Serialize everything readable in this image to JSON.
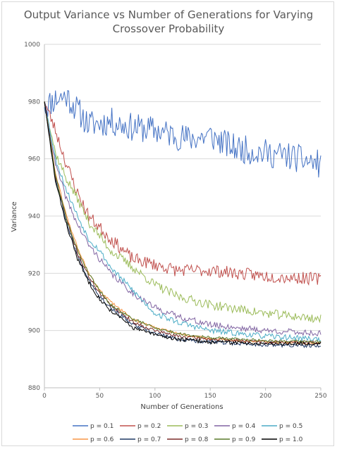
{
  "chart_data": {
    "type": "line",
    "title_lines": [
      "Output Variance vs Number of Generations for Varying",
      "Crossover Probability"
    ],
    "xlabel": "Number of Generations",
    "ylabel": "Variance",
    "xlim": [
      0,
      250
    ],
    "ylim": [
      880,
      1000
    ],
    "xticks": [
      0,
      50,
      100,
      150,
      200,
      250
    ],
    "yticks": [
      880,
      900,
      920,
      940,
      960,
      980,
      1000
    ],
    "grid": "horizontal",
    "legend_position": "bottom",
    "series": [
      {
        "name": "p = 0.1",
        "color": "#4472c4",
        "noise": 5.0,
        "seed": 11,
        "points": [
          [
            0,
            978
          ],
          [
            10,
            981
          ],
          [
            20,
            982
          ],
          [
            30,
            977
          ],
          [
            40,
            972
          ],
          [
            60,
            973
          ],
          [
            80,
            971
          ],
          [
            100,
            970
          ],
          [
            130,
            967
          ],
          [
            150,
            968
          ],
          [
            170,
            964
          ],
          [
            200,
            962
          ],
          [
            220,
            961
          ],
          [
            250,
            958
          ]
        ]
      },
      {
        "name": "p = 0.2",
        "color": "#c0504d",
        "noise": 2.2,
        "seed": 23,
        "points": [
          [
            0,
            980
          ],
          [
            10,
            970
          ],
          [
            20,
            958
          ],
          [
            30,
            948
          ],
          [
            40,
            940
          ],
          [
            50,
            936
          ],
          [
            60,
            932
          ],
          [
            80,
            925
          ],
          [
            100,
            923
          ],
          [
            120,
            921
          ],
          [
            150,
            921
          ],
          [
            200,
            919
          ],
          [
            250,
            918
          ]
        ]
      },
      {
        "name": "p = 0.3",
        "color": "#9bbb59",
        "noise": 1.6,
        "seed": 37,
        "points": [
          [
            0,
            980
          ],
          [
            10,
            962
          ],
          [
            20,
            953
          ],
          [
            30,
            946
          ],
          [
            40,
            938
          ],
          [
            50,
            933
          ],
          [
            60,
            928
          ],
          [
            80,
            922
          ],
          [
            100,
            916
          ],
          [
            120,
            912
          ],
          [
            150,
            909
          ],
          [
            200,
            906
          ],
          [
            250,
            904
          ]
        ]
      },
      {
        "name": "p = 0.4",
        "color": "#8064a2",
        "noise": 1.1,
        "seed": 41,
        "points": [
          [
            0,
            980
          ],
          [
            10,
            958
          ],
          [
            20,
            946
          ],
          [
            30,
            937
          ],
          [
            40,
            930
          ],
          [
            50,
            925
          ],
          [
            60,
            920
          ],
          [
            80,
            913
          ],
          [
            100,
            908
          ],
          [
            120,
            905
          ],
          [
            150,
            902
          ],
          [
            200,
            900
          ],
          [
            250,
            899
          ]
        ]
      },
      {
        "name": "p = 0.5",
        "color": "#4bacc6",
        "noise": 1.0,
        "seed": 53,
        "points": [
          [
            0,
            980
          ],
          [
            10,
            960
          ],
          [
            20,
            949
          ],
          [
            30,
            940
          ],
          [
            40,
            932
          ],
          [
            50,
            928
          ],
          [
            60,
            922
          ],
          [
            80,
            914
          ],
          [
            100,
            906
          ],
          [
            120,
            903
          ],
          [
            150,
            900
          ],
          [
            200,
            898
          ],
          [
            250,
            897
          ]
        ]
      },
      {
        "name": "p = 0.6",
        "color": "#f79646",
        "noise": 0.5,
        "seed": 61,
        "points": [
          [
            0,
            980
          ],
          [
            10,
            955
          ],
          [
            20,
            940
          ],
          [
            30,
            929
          ],
          [
            40,
            920
          ],
          [
            50,
            914
          ],
          [
            60,
            910
          ],
          [
            80,
            904
          ],
          [
            100,
            901
          ],
          [
            120,
            899
          ],
          [
            150,
            897
          ],
          [
            200,
            896
          ],
          [
            250,
            895.5
          ]
        ]
      },
      {
        "name": "p = 0.7",
        "color": "#1f3864",
        "noise": 0.7,
        "seed": 67,
        "points": [
          [
            0,
            980
          ],
          [
            10,
            953
          ],
          [
            20,
            938
          ],
          [
            30,
            926
          ],
          [
            40,
            918
          ],
          [
            50,
            912
          ],
          [
            60,
            908
          ],
          [
            80,
            902
          ],
          [
            100,
            899
          ],
          [
            120,
            897
          ],
          [
            150,
            896
          ],
          [
            200,
            895
          ],
          [
            250,
            894.5
          ]
        ]
      },
      {
        "name": "p = 0.8",
        "color": "#7b2c2a",
        "noise": 0.6,
        "seed": 71,
        "points": [
          [
            0,
            980
          ],
          [
            10,
            954
          ],
          [
            20,
            939
          ],
          [
            30,
            927
          ],
          [
            40,
            919
          ],
          [
            50,
            913
          ],
          [
            60,
            909
          ],
          [
            80,
            903
          ],
          [
            100,
            900
          ],
          [
            120,
            898
          ],
          [
            150,
            897
          ],
          [
            200,
            896
          ],
          [
            250,
            895.8
          ]
        ]
      },
      {
        "name": "p = 0.9",
        "color": "#5a7a2a",
        "noise": 0.5,
        "seed": 79,
        "points": [
          [
            0,
            980
          ],
          [
            10,
            954
          ],
          [
            20,
            939
          ],
          [
            30,
            928
          ],
          [
            40,
            920
          ],
          [
            50,
            914
          ],
          [
            60,
            909
          ],
          [
            80,
            904
          ],
          [
            100,
            901
          ],
          [
            120,
            899
          ],
          [
            150,
            897.5
          ],
          [
            200,
            896.5
          ],
          [
            250,
            896
          ]
        ]
      },
      {
        "name": "p = 1.0",
        "color": "#000000",
        "noise": 0.7,
        "seed": 83,
        "points": [
          [
            0,
            980
          ],
          [
            10,
            952
          ],
          [
            20,
            937
          ],
          [
            30,
            925
          ],
          [
            40,
            917
          ],
          [
            50,
            911
          ],
          [
            60,
            907
          ],
          [
            80,
            901
          ],
          [
            100,
            898.5
          ],
          [
            120,
            897
          ],
          [
            150,
            896
          ],
          [
            200,
            895.5
          ],
          [
            250,
            895.5
          ]
        ]
      }
    ]
  }
}
